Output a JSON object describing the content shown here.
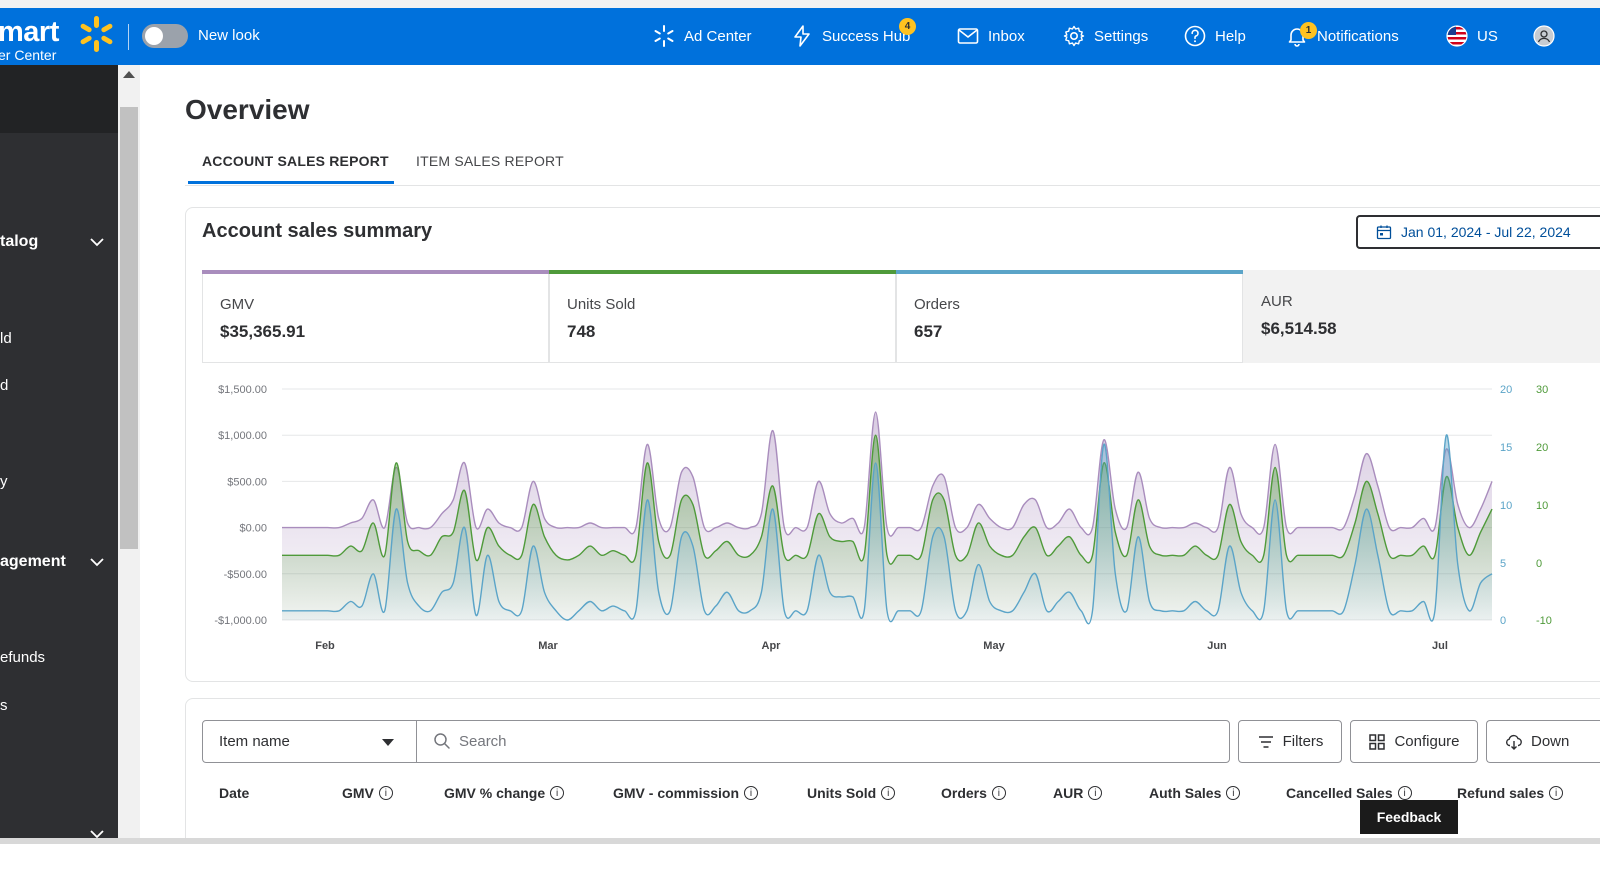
{
  "header": {
    "brand_main": "mart",
    "brand_sub": "er Center",
    "toggle_label": "New look",
    "nav": [
      {
        "label": "Ad Center",
        "icon": "spark-icon"
      },
      {
        "label": "Success Hub",
        "icon": "bolt-icon",
        "badge": "4"
      },
      {
        "label": "Inbox",
        "icon": "mail-icon"
      },
      {
        "label": "Settings",
        "icon": "gear-icon"
      },
      {
        "label": "Help",
        "icon": "help-icon"
      },
      {
        "label": "Notifications",
        "icon": "bell-icon",
        "badge": "1"
      },
      {
        "label": "US",
        "icon": "us-flag-icon"
      }
    ]
  },
  "sidebar": {
    "items": [
      {
        "label": "talog",
        "type": "section"
      },
      {
        "label": "ld"
      },
      {
        "label": "d"
      },
      {
        "label": "y"
      },
      {
        "label": "agement",
        "type": "section"
      },
      {
        "label": "efunds"
      },
      {
        "label": "s"
      }
    ]
  },
  "page": {
    "title": "Overview",
    "tabs": [
      {
        "label": "ACCOUNT SALES REPORT",
        "active": true
      },
      {
        "label": "ITEM SALES REPORT",
        "active": false
      }
    ]
  },
  "summary": {
    "title": "Account sales summary",
    "date_range": "Jan 01, 2024 - Jul 22, 2024",
    "kpis": [
      {
        "label": "GMV",
        "value": "$35,365.91",
        "color": "#a98dbd"
      },
      {
        "label": "Units Sold",
        "value": "748",
        "color": "#4f9a3a"
      },
      {
        "label": "Orders",
        "value": "657",
        "color": "#5ba4c8"
      },
      {
        "label": "AUR",
        "value": "$6,514.58",
        "color": ""
      }
    ]
  },
  "chart_data": {
    "type": "area",
    "x_ticks": [
      "Feb",
      "Mar",
      "Apr",
      "May",
      "Jun",
      "Jul"
    ],
    "left_axis": [
      "$1,500.00",
      "$1,000.00",
      "$500.00",
      "$0.00",
      "-$500.00",
      "-$1,000.00"
    ],
    "left_ylim": [
      -1000,
      1500
    ],
    "right_axis_1": [
      "20",
      "15",
      "10",
      "5",
      "0"
    ],
    "right_axis_2": [
      "30",
      "20",
      "10",
      "0",
      "-10"
    ],
    "grid": true,
    "series": [
      {
        "color": "#a98dbd",
        "values": [
          0,
          0,
          0,
          0,
          0,
          0,
          50,
          100,
          300,
          0,
          650,
          50,
          0,
          0,
          150,
          300,
          700,
          0,
          200,
          50,
          0,
          0,
          500,
          100,
          0,
          0,
          0,
          50,
          0,
          0,
          0,
          0,
          900,
          100,
          0,
          600,
          550,
          0,
          0,
          50,
          0,
          0,
          150,
          1050,
          0,
          0,
          0,
          500,
          150,
          50,
          100,
          0,
          1250,
          0,
          0,
          0,
          0,
          450,
          550,
          0,
          0,
          250,
          100,
          0,
          0,
          250,
          300,
          0,
          50,
          200,
          0,
          0,
          950,
          200,
          0,
          600,
          100,
          0,
          0,
          0,
          50,
          0,
          0,
          650,
          150,
          0,
          0,
          900,
          0,
          0,
          0,
          0,
          0,
          0,
          350,
          800,
          450,
          0,
          0,
          0,
          100,
          0,
          850,
          250,
          0,
          200,
          500
        ]
      },
      {
        "color": "#4f9a3a",
        "values": [
          -300,
          -300,
          -300,
          -300,
          -300,
          -300,
          -200,
          -250,
          50,
          -300,
          700,
          -150,
          -250,
          -300,
          -100,
          -50,
          400,
          -350,
          0,
          -200,
          -300,
          -300,
          250,
          -100,
          -300,
          -350,
          -300,
          -200,
          -300,
          -250,
          -300,
          -300,
          700,
          -150,
          -300,
          300,
          250,
          -300,
          -250,
          -150,
          -300,
          -300,
          -100,
          450,
          -300,
          -300,
          -300,
          150,
          -100,
          -150,
          -150,
          -300,
          1000,
          -300,
          -300,
          -300,
          -300,
          300,
          300,
          -300,
          -300,
          50,
          -200,
          -300,
          -300,
          -100,
          0,
          -300,
          -200,
          -100,
          -300,
          -300,
          700,
          -50,
          -300,
          300,
          -200,
          -300,
          -300,
          -300,
          -200,
          -300,
          -300,
          250,
          -150,
          -300,
          -300,
          650,
          -300,
          -300,
          -300,
          -300,
          -300,
          -300,
          50,
          500,
          150,
          -300,
          -300,
          -300,
          -200,
          -300,
          550,
          0,
          -300,
          -50,
          200
        ]
      },
      {
        "color": "#5ba4c8",
        "values": [
          -900,
          -900,
          -900,
          -900,
          -900,
          -900,
          -800,
          -850,
          -500,
          -900,
          200,
          -600,
          -850,
          -900,
          -700,
          -600,
          0,
          -950,
          -300,
          -800,
          -900,
          -900,
          -200,
          -700,
          -900,
          -1000,
          -900,
          -800,
          -900,
          -850,
          -900,
          -900,
          300,
          -700,
          -900,
          -100,
          -200,
          -900,
          -850,
          -700,
          -900,
          -900,
          -700,
          200,
          -900,
          -900,
          -900,
          -300,
          -700,
          -750,
          -750,
          -900,
          700,
          -900,
          -900,
          -900,
          -900,
          -100,
          -100,
          -900,
          -900,
          -400,
          -800,
          -900,
          -900,
          -700,
          -500,
          -900,
          -800,
          -700,
          -900,
          -900,
          900,
          -500,
          -900,
          -100,
          -800,
          -900,
          -900,
          -900,
          -800,
          -900,
          -900,
          -200,
          -700,
          -900,
          -900,
          300,
          -900,
          -900,
          -900,
          -900,
          -900,
          -900,
          -400,
          200,
          -300,
          -900,
          -900,
          -900,
          -800,
          -900,
          1000,
          -400,
          -900,
          -600,
          -500
        ]
      }
    ]
  },
  "table": {
    "item_select": "Item name",
    "search_placeholder": "Search",
    "buttons": [
      "Filters",
      "Configure",
      "Down"
    ],
    "columns": [
      "Date",
      "GMV",
      "GMV % change",
      "GMV - commission",
      "Units Sold",
      "Orders",
      "AUR",
      "Auth Sales",
      "Cancelled Sales",
      "Refund sales"
    ]
  },
  "feedback_label": "Feedback"
}
